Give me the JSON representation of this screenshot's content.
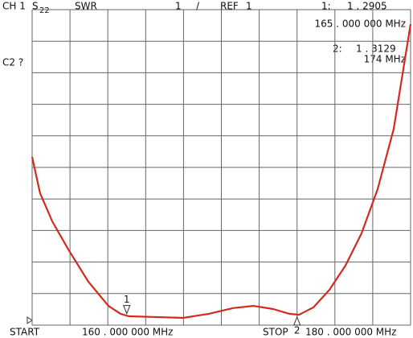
{
  "chart_data": {
    "type": "line",
    "channel": "CH 1",
    "param": "S",
    "param_sub": "22",
    "format": "SWR",
    "scale": "1",
    "scale_sep": "/",
    "ref_label": "REF",
    "ref": "1",
    "aux": "C2 ?",
    "start_label": "START",
    "start": "160 . 000 000 MHz",
    "stop_label": "STOP",
    "stop": "180 . 000 000 MHz",
    "xlim": [
      160,
      180
    ],
    "ylim": [
      1,
      11
    ],
    "grid": true,
    "color": "#d42a1e",
    "x": [
      160,
      160.42,
      161.06,
      161.91,
      162.97,
      164.03,
      164.67,
      165.1,
      166.37,
      167.98,
      169.34,
      170.62,
      171.68,
      172.74,
      173.59,
      174.1,
      174.86,
      175.71,
      176.56,
      177.41,
      178.26,
      179.11,
      180
    ],
    "values": [
      6.33,
      5.18,
      4.29,
      3.4,
      2.38,
      1.61,
      1.36,
      1.28,
      1.26,
      1.23,
      1.36,
      1.54,
      1.61,
      1.51,
      1.36,
      1.33,
      1.56,
      2.12,
      2.89,
      3.91,
      5.31,
      7.22,
      10.54
    ],
    "markers": [
      {
        "index_label": "1:",
        "label": "1",
        "x": 165,
        "value": 1.2905,
        "value_label": "1 . 2905",
        "freq_label": "165 . 000 000 MHz"
      },
      {
        "index_label": "2:",
        "label": "2",
        "x": 174,
        "value": 1.3129,
        "value_label": "1 . 3129",
        "freq_label": "174 MHz"
      }
    ]
  }
}
